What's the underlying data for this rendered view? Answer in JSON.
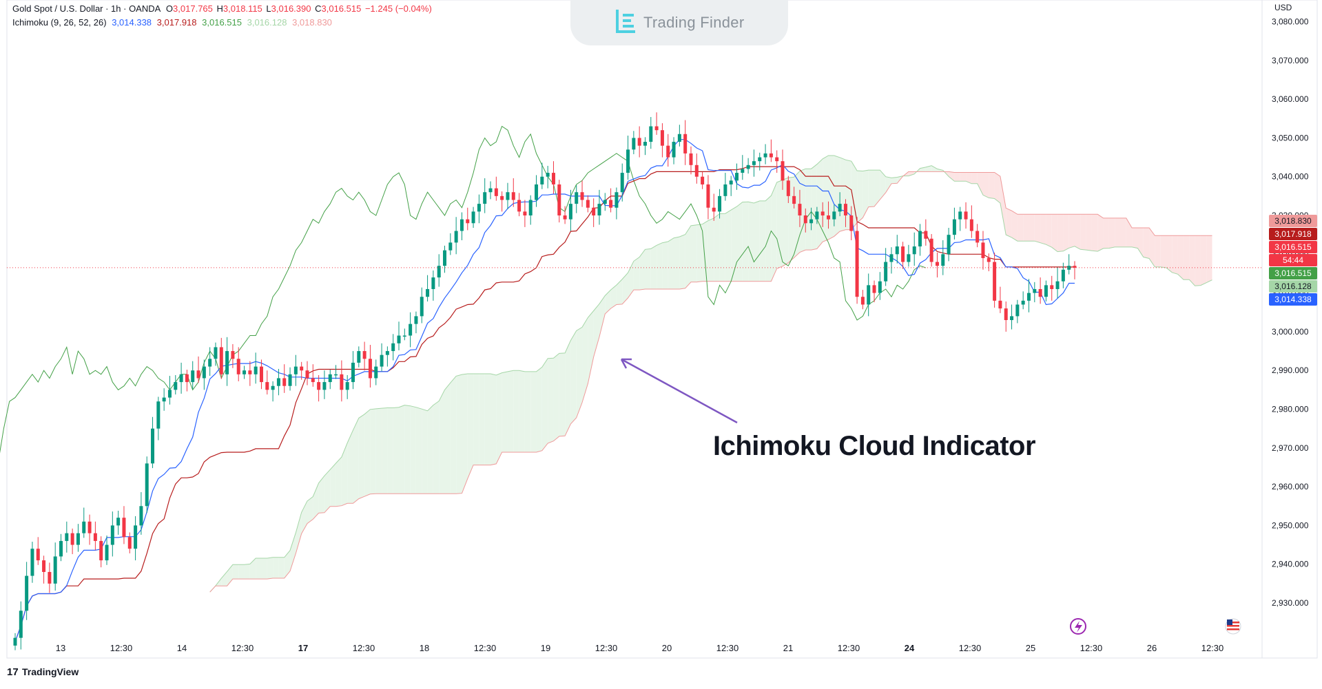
{
  "legend": {
    "symbol": "Gold Spot / U.S. Dollar · 1h · OANDA",
    "open_label": "O",
    "open": "3,017.765",
    "high_label": "H",
    "high": "3,018.115",
    "low_label": "L",
    "low": "3,016.390",
    "close_label": "C",
    "close": "3,016.515",
    "change": "−1.245 (−0.04%)",
    "indicator": "Ichimoku (9, 26, 52, 26)",
    "ind_values": [
      "3,014.338",
      "3,017.918",
      "3,016.515",
      "3,016.128",
      "3,018.830"
    ]
  },
  "brand": {
    "name": "Trading Finder"
  },
  "currency": "USD",
  "annotation": "Ichimoku Cloud Indicator",
  "footer": {
    "logo": "17",
    "name": "TradingView"
  },
  "colors": {
    "up": "#089981",
    "down": "#f23645",
    "conversion": "#2962ff",
    "base": "#b71c1c",
    "lagging": "#43a047",
    "cloud_bull": "#e8f5e9",
    "cloud_bear": "#fce4e4",
    "span_a": "#a5d6a7",
    "span_b": "#ef9a9a",
    "arrow": "#7e57c2"
  },
  "price_tags": [
    {
      "label": "3,018.830",
      "value": 3018.83,
      "color": "#ef9a9a",
      "text_color": "#131722"
    },
    {
      "label": "3,017.918",
      "value": 3017.918,
      "color": "#b71c1c",
      "text_color": "#ffffff"
    },
    {
      "label": "3,016.515",
      "value": 3016.515,
      "color": "#f23645",
      "text_color": "#ffffff"
    },
    {
      "label": "54:44",
      "value": 3016.515,
      "color": "#f23645",
      "text_color": "#ffffff",
      "countdown": true
    },
    {
      "label": "3,016.515",
      "value": 3016.515,
      "color": "#43a047",
      "text_color": "#ffffff"
    },
    {
      "label": "3,016.128",
      "value": 3016.128,
      "color": "#a5d6a7",
      "text_color": "#131722"
    },
    {
      "label": "3,014.338",
      "value": 3014.338,
      "color": "#2962ff",
      "text_color": "#ffffff"
    }
  ],
  "chart_data": {
    "type": "candlestick",
    "title": "Gold Spot / U.S. Dollar · 1h · OANDA",
    "ylim": [
      2920,
      3085
    ],
    "y_ticks": [
      "3,080.000",
      "3,070.000",
      "3,060.000",
      "3,050.000",
      "3,040.000",
      "3,030.000",
      "3,020.000",
      "3,010.000",
      "3,000.000",
      "2,990.000",
      "2,980.000",
      "2,970.000",
      "2,960.000",
      "2,950.000",
      "2,940.000",
      "2,930.000"
    ],
    "y_tick_values": [
      3080,
      3070,
      3060,
      3050,
      3040,
      3030,
      3020,
      3010,
      3000,
      2990,
      2980,
      2970,
      2960,
      2950,
      2940,
      2930
    ],
    "x_ticks": [
      "13",
      "12:30",
      "14",
      "12:30",
      "17",
      "12:30",
      "18",
      "12:30",
      "19",
      "12:30",
      "20",
      "12:30",
      "21",
      "12:30",
      "24",
      "12:30",
      "25",
      "12:30",
      "26",
      "12:30"
    ],
    "x_tick_bold": [
      false,
      false,
      false,
      false,
      true,
      false,
      false,
      false,
      false,
      false,
      false,
      false,
      false,
      false,
      true,
      false,
      false,
      false,
      false,
      false
    ],
    "last_price": 3016.515,
    "close_series": [
      2921,
      2928,
      2937,
      2944,
      2941,
      2938,
      2935,
      2942,
      2946,
      2948,
      2945,
      2948,
      2951,
      2948,
      2946,
      2941,
      2945,
      2950,
      2952,
      2947,
      2944,
      2950,
      2955,
      2966,
      2975,
      2982,
      2983,
      2985,
      2987,
      2989,
      2987,
      2990,
      2988,
      2991,
      2993,
      2996,
      2989,
      2995,
      2993,
      2989,
      2990,
      2989,
      2991,
      2987,
      2985,
      2986,
      2988,
      2986,
      2989,
      2991,
      2990,
      2988,
      2987,
      2985,
      2987,
      2989,
      2989,
      2985,
      2987,
      2992,
      2995,
      2993,
      2988,
      2991,
      2994,
      2995,
      2997,
      2999,
      2999,
      3002,
      3004,
      3009,
      3011,
      3014,
      3017,
      3021,
      3023,
      3026,
      3029,
      3028,
      3031,
      3033,
      3036,
      3037,
      3035,
      3034,
      3036,
      3034,
      3031,
      3030,
      3034,
      3038,
      3040,
      3041,
      3038,
      3030,
      3029,
      3033,
      3036,
      3034,
      3032,
      3030,
      3033,
      3034,
      3032,
      3036,
      3041,
      3047,
      3050,
      3048,
      3049,
      3053,
      3052,
      3048,
      3045,
      3049,
      3051,
      3046,
      3043,
      3040,
      3038,
      3032,
      3031,
      3035,
      3038,
      3039,
      3041,
      3042,
      3043,
      3044,
      3045,
      3046,
      3045,
      3044,
      3039,
      3035,
      3033,
      3030,
      3028,
      3029,
      3031,
      3030,
      3029,
      3031,
      3033,
      3030,
      3026,
      3009,
      3007,
      3012,
      3010,
      3013,
      3018,
      3020,
      3022,
      3018,
      3020,
      3022,
      3026,
      3024,
      3018,
      3017,
      3020,
      3025,
      3029,
      3031,
      3029,
      3026,
      3023,
      3019,
      3018,
      3008,
      3006,
      3003,
      3004,
      3007,
      3008,
      3010,
      3011,
      3009,
      3012,
      3011,
      3013,
      3016,
      3017,
      3016.5
    ]
  }
}
